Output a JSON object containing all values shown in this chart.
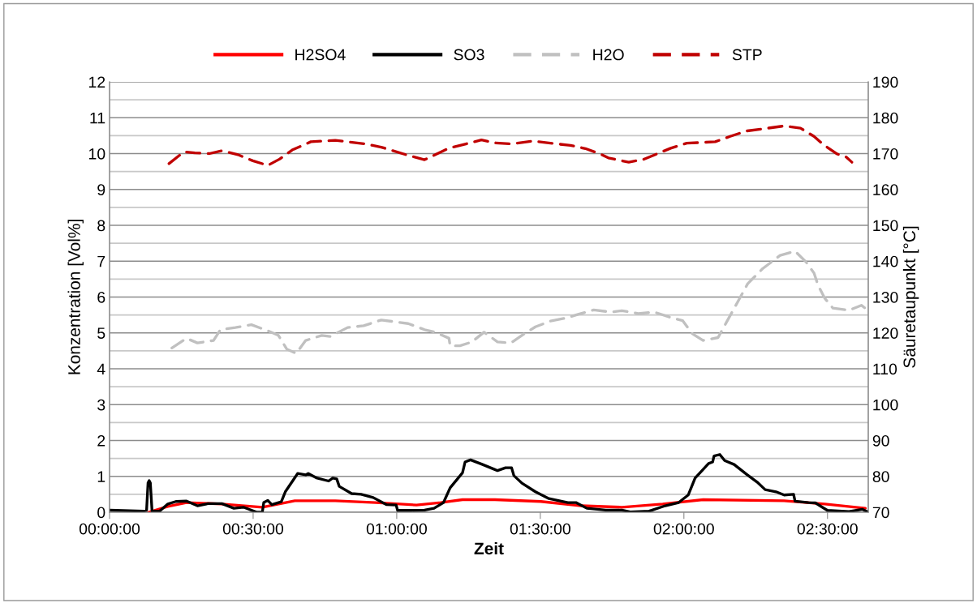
{
  "chart_data": {
    "type": "line",
    "xlabel": "Zeit",
    "ylabel": "Konzentration [Vol%]",
    "y2label": "Säuretaupunkt [°C]",
    "xlim": [
      0,
      2.642
    ],
    "xticks": [
      {
        "value": 0,
        "label": "00:00:00"
      },
      {
        "value": 0.5,
        "label": "00:30:00"
      },
      {
        "value": 1,
        "label": "01:00:00"
      },
      {
        "value": 1.5,
        "label": "01:30:00"
      },
      {
        "value": 2,
        "label": "02:00:00"
      },
      {
        "value": 2.5,
        "label": "02:30:00"
      }
    ],
    "ylim": [
      0,
      12
    ],
    "yticks": [
      0,
      1,
      2,
      3,
      4,
      5,
      6,
      7,
      8,
      9,
      10,
      11,
      12
    ],
    "y2lim": [
      70,
      190
    ],
    "y2ticks": [
      70,
      80,
      90,
      100,
      110,
      120,
      130,
      140,
      150,
      160,
      170,
      180,
      190
    ],
    "grid": "y",
    "legend": "top",
    "marker": "none",
    "series": [
      {
        "name": "H2SO4",
        "color": "#ff0000",
        "line_style": "solid",
        "x": [
          0.136,
          0.203,
          0.268,
          0.391,
          0.532,
          0.645,
          0.786,
          0.927,
          1.069,
          1.153,
          1.229,
          1.342,
          1.502,
          1.643,
          1.784,
          1.926,
          2.067,
          2.349,
          2.491,
          2.632
        ],
        "values": [
          0,
          0.16,
          0.27,
          0.23,
          0.14,
          0.32,
          0.32,
          0.27,
          0.2,
          0.27,
          0.35,
          0.35,
          0.3,
          0.18,
          0.14,
          0.23,
          0.35,
          0.32,
          0.23,
          0.11
        ]
      },
      {
        "name": "SO3",
        "color": "#000000",
        "line_style": "solid",
        "x": [
          0,
          0.118,
          0.129,
          0.134,
          0.138,
          0.142,
          0.148,
          0.174,
          0.203,
          0.231,
          0.268,
          0.306,
          0.344,
          0.391,
          0.433,
          0.466,
          0.513,
          0.532,
          0.537,
          0.551,
          0.565,
          0.598,
          0.612,
          0.655,
          0.683,
          0.692,
          0.72,
          0.763,
          0.777,
          0.791,
          0.8,
          0.843,
          0.876,
          0.918,
          0.965,
          0.998,
          1.003,
          1.05,
          1.097,
          1.13,
          1.163,
          1.186,
          1.229,
          1.238,
          1.257,
          1.299,
          1.342,
          1.351,
          1.379,
          1.4,
          1.408,
          1.436,
          1.483,
          1.53,
          1.596,
          1.624,
          1.662,
          1.728,
          1.784,
          1.813,
          1.879,
          1.935,
          1.982,
          2.015,
          2.039,
          2.086,
          2.1,
          2.105,
          2.125,
          2.142,
          2.175,
          2.218,
          2.255,
          2.283,
          2.321,
          2.349,
          2.382,
          2.387,
          2.434,
          2.458,
          2.5,
          2.575,
          2.622,
          2.641
        ],
        "values": [
          0.06,
          0.03,
          0.06,
          0.82,
          0.88,
          0.82,
          0.03,
          0.03,
          0.23,
          0.3,
          0.31,
          0.18,
          0.24,
          0.24,
          0.11,
          0.14,
          0,
          0,
          0.27,
          0.33,
          0.21,
          0.29,
          0.57,
          1.08,
          1.04,
          1.08,
          0.96,
          0.87,
          0.95,
          0.93,
          0.72,
          0.52,
          0.5,
          0.41,
          0.21,
          0.2,
          0.05,
          0.05,
          0.06,
          0.11,
          0.27,
          0.68,
          1.1,
          1.4,
          1.46,
          1.33,
          1.19,
          1.16,
          1.24,
          1.24,
          1.02,
          0.81,
          0.57,
          0.38,
          0.27,
          0.27,
          0.11,
          0.06,
          0.06,
          0.01,
          0.03,
          0.18,
          0.27,
          0.48,
          0.95,
          1.36,
          1.4,
          1.57,
          1.61,
          1.44,
          1.33,
          1.06,
          0.84,
          0.63,
          0.57,
          0.48,
          0.5,
          0.31,
          0.27,
          0.26,
          0.05,
          0.02,
          0.08,
          0.01
        ]
      },
      {
        "name": "H2O",
        "color": "#c0c0c0",
        "line_style": "dashed",
        "x": [
          0.217,
          0.268,
          0.306,
          0.362,
          0.386,
          0.438,
          0.494,
          0.551,
          0.588,
          0.617,
          0.65,
          0.683,
          0.739,
          0.768,
          0.829,
          0.885,
          0.946,
          0.984,
          1.04,
          1.097,
          1.135,
          1.182,
          1.186,
          1.22,
          1.262,
          1.304,
          1.351,
          1.398,
          1.445,
          1.483,
          1.535,
          1.587,
          1.629,
          1.686,
          1.747,
          1.784,
          1.841,
          1.897,
          1.954,
          1.996,
          2.029,
          2.067,
          2.119,
          2.147,
          2.194,
          2.222,
          2.274,
          2.335,
          2.387,
          2.425,
          2.453,
          2.467,
          2.491,
          2.519,
          2.575,
          2.618,
          2.636
        ],
        "values": [
          4.58,
          4.85,
          4.72,
          4.79,
          5.09,
          5.15,
          5.23,
          5.06,
          4.93,
          4.55,
          4.43,
          4.79,
          4.93,
          4.9,
          5.15,
          5.2,
          5.36,
          5.32,
          5.26,
          5.09,
          5.02,
          4.85,
          4.64,
          4.64,
          4.75,
          5.02,
          4.75,
          4.72,
          4.98,
          5.17,
          5.33,
          5.41,
          5.51,
          5.64,
          5.58,
          5.62,
          5.54,
          5.58,
          5.43,
          5.34,
          4.98,
          4.79,
          4.87,
          5.28,
          5.96,
          6.37,
          6.79,
          7.16,
          7.28,
          6.98,
          6.67,
          6.33,
          5.96,
          5.69,
          5.63,
          5.77,
          5.66
        ]
      },
      {
        "name": "STP",
        "color": "#c00000",
        "line_style": "dashed",
        "axis": "y2",
        "x": [
          0.207,
          0.259,
          0.297,
          0.348,
          0.391,
          0.447,
          0.499,
          0.551,
          0.593,
          0.636,
          0.701,
          0.786,
          0.89,
          0.946,
          1.04,
          1.097,
          1.182,
          1.295,
          1.342,
          1.398,
          1.474,
          1.558,
          1.605,
          1.657,
          1.709,
          1.737,
          1.808,
          1.86,
          1.954,
          2.01,
          2.109,
          2.161,
          2.218,
          2.349,
          2.406,
          2.453,
          2.486,
          2.533,
          2.566,
          2.585
        ],
        "values": [
          167.2,
          170.5,
          170.2,
          170,
          170.8,
          169.7,
          168,
          166.7,
          168.5,
          171,
          173.3,
          173.7,
          172.7,
          171.8,
          169.5,
          168.3,
          171.5,
          173.8,
          173,
          172.7,
          173.5,
          172.7,
          172.3,
          171.4,
          169.9,
          168.8,
          167.6,
          168.4,
          171.5,
          172.9,
          173.3,
          174.8,
          176.3,
          177.7,
          177.1,
          174.8,
          172.5,
          169.9,
          169,
          167.6
        ]
      }
    ]
  }
}
